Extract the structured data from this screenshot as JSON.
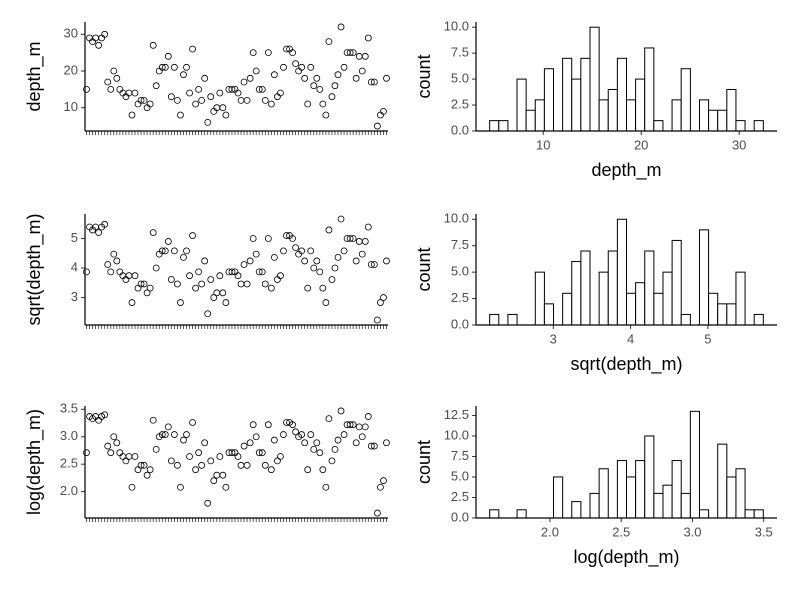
{
  "chart_data": [
    {
      "type": "scatter",
      "y_label": "depth_m",
      "categories": [
        null,
        null,
        null,
        null,
        null,
        null,
        null,
        null,
        null,
        null,
        null,
        null,
        null,
        null,
        null,
        null,
        null,
        null,
        null,
        null,
        null,
        null,
        null,
        null,
        null,
        null,
        null,
        null,
        null,
        null,
        null,
        null,
        null,
        null,
        null,
        null,
        null,
        null,
        null,
        null,
        null,
        null,
        null,
        null,
        null,
        null,
        null,
        null,
        null,
        null,
        null,
        null,
        null,
        null,
        null,
        null,
        null,
        null,
        null,
        null,
        null,
        null,
        null,
        null,
        null,
        null,
        null,
        null,
        null,
        null,
        null,
        null,
        null,
        null,
        null,
        null,
        null,
        null,
        null,
        null,
        null,
        null,
        null,
        null,
        null,
        null,
        null,
        null,
        null,
        null,
        null,
        null,
        null,
        null,
        null,
        null,
        null,
        null,
        null,
        null
      ],
      "values": [
        15,
        29,
        28,
        29,
        27,
        29,
        30,
        17,
        15,
        20,
        18,
        15,
        14,
        13,
        14,
        8,
        14,
        11,
        12,
        12,
        10,
        11,
        27,
        16,
        20,
        21,
        21,
        24,
        13,
        21,
        12,
        8,
        19,
        21,
        14,
        26,
        11,
        15,
        12,
        18,
        6,
        13,
        9,
        10,
        14,
        10,
        8,
        15,
        15,
        15,
        14,
        12,
        17,
        12,
        18,
        25,
        20,
        15,
        15,
        12,
        25,
        11,
        19,
        13,
        14,
        21,
        26,
        26,
        25,
        22,
        20,
        21,
        18,
        11,
        21,
        16,
        18,
        15,
        11,
        8,
        28,
        13,
        16,
        19,
        32,
        21,
        25,
        25,
        25,
        18,
        24,
        20,
        24,
        29,
        17,
        17,
        5,
        8,
        9,
        18
      ],
      "ylim": [
        3.65,
        33.35
      ],
      "yticks": [
        10,
        20,
        30
      ]
    },
    {
      "type": "histogram",
      "x_label": "depth_m",
      "y_label": "count",
      "bins": [
        4.534,
        5.465,
        6.396,
        7.327,
        8.258,
        9.189,
        10.12,
        11.05,
        11.98,
        12.91,
        13.84,
        14.775,
        15.706,
        16.637,
        17.568,
        18.5,
        19.43,
        20.36,
        21.29,
        22.22,
        23.15,
        24.08,
        25.02,
        25.95,
        26.88,
        27.81,
        28.74,
        29.67,
        30.6,
        31.53,
        32.466
      ],
      "values": [
        1,
        1,
        0,
        5,
        2,
        3,
        6,
        0,
        7,
        5,
        7,
        10,
        3,
        4,
        7,
        3,
        5,
        8,
        1,
        0,
        3,
        6,
        0,
        3,
        2,
        2,
        4,
        1,
        0,
        1
      ],
      "xlim": [
        3.14,
        33.86
      ],
      "xticks": [
        10,
        20,
        30
      ],
      "ylim": [
        0,
        10.5
      ],
      "yticks": [
        {
          "value": 0,
          "label": "0.0"
        },
        {
          "value": 2.5,
          "label": "2.5"
        },
        {
          "value": 5,
          "label": "5.0"
        },
        {
          "value": 7.5,
          "label": "7.5"
        },
        {
          "value": 10,
          "label": "10.0"
        }
      ]
    },
    {
      "type": "scatter",
      "y_label": "sqrt(depth_m)",
      "categories": [
        null,
        null,
        null,
        null,
        null,
        null,
        null,
        null,
        null,
        null,
        null,
        null,
        null,
        null,
        null,
        null,
        null,
        null,
        null,
        null,
        null,
        null,
        null,
        null,
        null,
        null,
        null,
        null,
        null,
        null,
        null,
        null,
        null,
        null,
        null,
        null,
        null,
        null,
        null,
        null,
        null,
        null,
        null,
        null,
        null,
        null,
        null,
        null,
        null,
        null,
        null,
        null,
        null,
        null,
        null,
        null,
        null,
        null,
        null,
        null,
        null,
        null,
        null,
        null,
        null,
        null,
        null,
        null,
        null,
        null,
        null,
        null,
        null,
        null,
        null,
        null,
        null,
        null,
        null,
        null,
        null,
        null,
        null,
        null,
        null,
        null,
        null,
        null,
        null,
        null,
        null,
        null,
        null,
        null,
        null,
        null,
        null,
        null,
        null,
        null
      ],
      "values": [
        3.87,
        5.39,
        5.29,
        5.39,
        5.2,
        5.39,
        5.48,
        4.12,
        3.87,
        4.47,
        4.24,
        3.87,
        3.74,
        3.61,
        3.74,
        2.83,
        3.74,
        3.32,
        3.46,
        3.46,
        3.16,
        3.32,
        5.2,
        4,
        4.47,
        4.58,
        4.58,
        4.9,
        3.61,
        4.58,
        3.46,
        2.83,
        4.36,
        4.58,
        3.74,
        5.1,
        3.32,
        3.87,
        3.46,
        4.24,
        2.45,
        3.61,
        3,
        3.16,
        3.74,
        3.16,
        2.83,
        3.87,
        3.87,
        3.87,
        3.74,
        3.46,
        4.12,
        3.46,
        4.24,
        5,
        4.47,
        3.87,
        3.87,
        3.46,
        5,
        3.32,
        4.36,
        3.61,
        3.74,
        4.58,
        5.1,
        5.1,
        5,
        4.69,
        4.47,
        4.58,
        4.24,
        3.32,
        4.58,
        4,
        4.24,
        3.87,
        3.32,
        2.83,
        5.29,
        3.61,
        4,
        4.36,
        5.66,
        4.58,
        5,
        5,
        5,
        4.24,
        4.9,
        4.47,
        4.9,
        5.39,
        4.12,
        4.12,
        2.24,
        2.83,
        3,
        4.24
      ],
      "ylim": [
        2.07,
        5.83
      ],
      "yticks": [
        3,
        4,
        5
      ]
    },
    {
      "type": "histogram",
      "x_label": "sqrt(depth_m)",
      "y_label": "count",
      "bins": [
        2.177,
        2.295,
        2.413,
        2.531,
        2.649,
        2.767,
        2.885,
        3.003,
        3.121,
        3.239,
        3.357,
        3.475,
        3.593,
        3.711,
        3.829,
        3.947,
        4.065,
        4.183,
        4.301,
        4.419,
        4.537,
        4.655,
        4.773,
        4.891,
        5.009,
        5.127,
        5.245,
        5.363,
        5.481,
        5.599,
        5.717
      ],
      "values": [
        1,
        0,
        1,
        0,
        0,
        5,
        2,
        0,
        3,
        6,
        7,
        0,
        5,
        7,
        10,
        3,
        4,
        7,
        3,
        5,
        8,
        1,
        0,
        9,
        3,
        2,
        2,
        5,
        0,
        1
      ],
      "xlim": [
        2.0,
        5.894
      ],
      "xticks": [
        3,
        4,
        5
      ],
      "ylim": [
        0,
        10.5
      ],
      "yticks": [
        {
          "value": 0,
          "label": "0.0"
        },
        {
          "value": 2.5,
          "label": "2.5"
        },
        {
          "value": 5,
          "label": "5.0"
        },
        {
          "value": 7.5,
          "label": "7.5"
        },
        {
          "value": 10,
          "label": "10.0"
        }
      ]
    },
    {
      "type": "scatter",
      "y_label": "log(depth_m)",
      "categories": [
        null,
        null,
        null,
        null,
        null,
        null,
        null,
        null,
        null,
        null,
        null,
        null,
        null,
        null,
        null,
        null,
        null,
        null,
        null,
        null,
        null,
        null,
        null,
        null,
        null,
        null,
        null,
        null,
        null,
        null,
        null,
        null,
        null,
        null,
        null,
        null,
        null,
        null,
        null,
        null,
        null,
        null,
        null,
        null,
        null,
        null,
        null,
        null,
        null,
        null,
        null,
        null,
        null,
        null,
        null,
        null,
        null,
        null,
        null,
        null,
        null,
        null,
        null,
        null,
        null,
        null,
        null,
        null,
        null,
        null,
        null,
        null,
        null,
        null,
        null,
        null,
        null,
        null,
        null,
        null,
        null,
        null,
        null,
        null,
        null,
        null,
        null,
        null,
        null,
        null,
        null,
        null,
        null,
        null,
        null,
        null,
        null,
        null,
        null,
        null
      ],
      "values": [
        2.71,
        3.37,
        3.33,
        3.37,
        3.3,
        3.37,
        3.4,
        2.83,
        2.71,
        3,
        2.89,
        2.71,
        2.64,
        2.56,
        2.64,
        2.08,
        2.64,
        2.4,
        2.48,
        2.48,
        2.3,
        2.4,
        3.3,
        2.77,
        3,
        3.04,
        3.04,
        3.18,
        2.56,
        3.04,
        2.48,
        2.08,
        2.94,
        3.04,
        2.64,
        3.26,
        2.4,
        2.71,
        2.48,
        2.89,
        1.79,
        2.56,
        2.2,
        2.3,
        2.64,
        2.3,
        2.08,
        2.71,
        2.71,
        2.71,
        2.64,
        2.48,
        2.83,
        2.48,
        2.89,
        3.22,
        3,
        2.71,
        2.71,
        2.48,
        3.22,
        2.4,
        2.94,
        2.56,
        2.64,
        3.04,
        3.26,
        3.26,
        3.22,
        3.09,
        3,
        3.04,
        2.89,
        2.4,
        3.04,
        2.77,
        2.89,
        2.71,
        2.4,
        2.08,
        3.33,
        2.56,
        2.77,
        2.94,
        3.47,
        3.04,
        3.22,
        3.22,
        3.22,
        2.89,
        3.18,
        3,
        3.18,
        3.37,
        2.83,
        2.83,
        1.61,
        2.08,
        2.2,
        2.89
      ],
      "ylim": [
        1.52,
        3.56
      ],
      "yticks": [
        {
          "value": 2,
          "label": "2.0"
        },
        2.5,
        {
          "value": 3,
          "label": "3.0"
        },
        3.5
      ]
    },
    {
      "type": "histogram",
      "x_label": "log(depth_m)",
      "y_label": "count",
      "bins": [
        1.577,
        1.641,
        1.705,
        1.769,
        1.833,
        1.897,
        1.961,
        2.025,
        2.089,
        2.153,
        2.217,
        2.281,
        2.345,
        2.409,
        2.473,
        2.537,
        2.601,
        2.665,
        2.729,
        2.793,
        2.857,
        2.921,
        2.985,
        3.049,
        3.113,
        3.177,
        3.241,
        3.305,
        3.369,
        3.433,
        3.497
      ],
      "values": [
        1,
        0,
        0,
        1,
        0,
        0,
        0,
        5,
        0,
        2,
        0,
        3,
        6,
        0,
        7,
        5,
        7,
        10,
        3,
        4,
        7,
        3,
        13,
        1,
        0,
        9,
        5,
        6,
        1,
        1
      ],
      "xlim": [
        1.481,
        3.593
      ],
      "xticks": [
        {
          "value": 2,
          "label": "2.0"
        },
        2.5,
        {
          "value": 3,
          "label": "3.0"
        },
        3.5
      ],
      "ylim": [
        0,
        13.65
      ],
      "yticks": [
        {
          "value": 0,
          "label": "0.0"
        },
        {
          "value": 2.5,
          "label": "2.5"
        },
        {
          "value": 5,
          "label": "5.0"
        },
        {
          "value": 7.5,
          "label": "7.5"
        },
        {
          "value": 10,
          "label": "10.0"
        },
        {
          "value": 12.5,
          "label": "12.5"
        }
      ]
    }
  ]
}
